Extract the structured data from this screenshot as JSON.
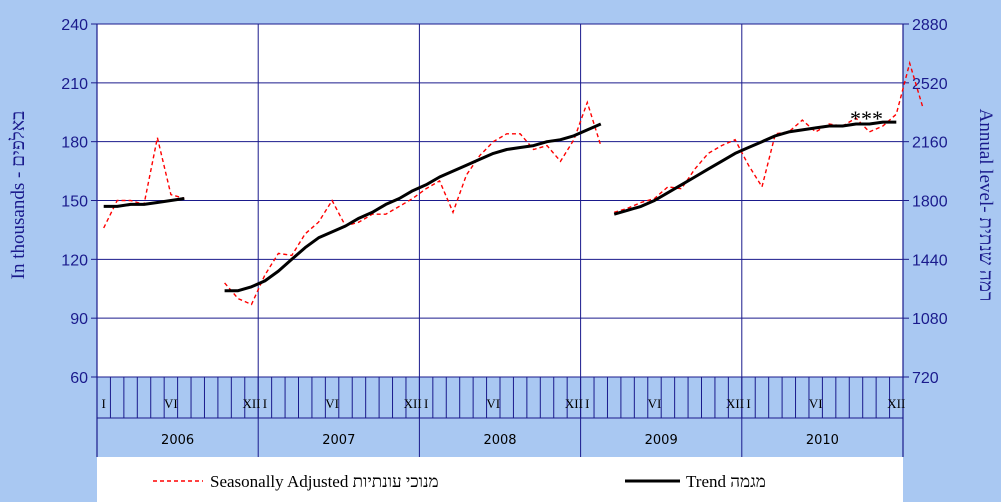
{
  "chart_data": {
    "type": "line",
    "left_axis": {
      "label": "In thousands - באלפים",
      "range": [
        60,
        240
      ],
      "ticks": [
        60,
        90,
        120,
        150,
        180,
        210,
        240
      ]
    },
    "right_axis": {
      "label": "Annual level- רמה שנתית",
      "range": [
        720,
        2880
      ],
      "ticks": [
        720,
        1080,
        1440,
        1800,
        2160,
        2520,
        2880
      ]
    },
    "years": [
      "2006",
      "2007",
      "2008",
      "2009",
      "2010"
    ],
    "month_labels": [
      {
        "month": 1,
        "text": "I"
      },
      {
        "month": 6,
        "text": "VI"
      },
      {
        "month": 12,
        "text": "XII"
      }
    ],
    "annotation": "***",
    "grid": true,
    "legend_position": "bottom",
    "series": [
      {
        "name": "Seasonally Adjusted מנוכי עונתיות",
        "style": "dashed",
        "color": "#ff0000",
        "segments": [
          [
            {
              "t": 1,
              "v": 136
            },
            {
              "t": 2,
              "v": 150
            },
            {
              "t": 3,
              "v": 150
            },
            {
              "t": 4,
              "v": 148
            },
            {
              "t": 5,
              "v": 182
            },
            {
              "t": 6,
              "v": 153
            },
            {
              "t": 7,
              "v": 151
            }
          ],
          [
            {
              "t": 10,
              "v": 108
            },
            {
              "t": 11,
              "v": 100
            },
            {
              "t": 12,
              "v": 97
            },
            {
              "t": 13,
              "v": 112
            },
            {
              "t": 14,
              "v": 123
            },
            {
              "t": 15,
              "v": 122
            },
            {
              "t": 16,
              "v": 133
            },
            {
              "t": 17,
              "v": 139
            },
            {
              "t": 18,
              "v": 150
            },
            {
              "t": 19,
              "v": 137
            },
            {
              "t": 20,
              "v": 139
            },
            {
              "t": 21,
              "v": 143
            },
            {
              "t": 22,
              "v": 143
            },
            {
              "t": 23,
              "v": 147
            },
            {
              "t": 24,
              "v": 151
            },
            {
              "t": 25,
              "v": 156
            },
            {
              "t": 26,
              "v": 160
            },
            {
              "t": 27,
              "v": 144
            },
            {
              "t": 28,
              "v": 163
            },
            {
              "t": 29,
              "v": 173
            },
            {
              "t": 30,
              "v": 180
            },
            {
              "t": 31,
              "v": 184
            },
            {
              "t": 32,
              "v": 184
            },
            {
              "t": 33,
              "v": 176
            },
            {
              "t": 34,
              "v": 178
            },
            {
              "t": 35,
              "v": 170
            },
            {
              "t": 36,
              "v": 181
            },
            {
              "t": 37,
              "v": 200
            },
            {
              "t": 38,
              "v": 178
            }
          ],
          [
            {
              "t": 39,
              "v": 144
            },
            {
              "t": 40,
              "v": 146
            },
            {
              "t": 41,
              "v": 149
            },
            {
              "t": 42,
              "v": 151
            },
            {
              "t": 43,
              "v": 157
            },
            {
              "t": 44,
              "v": 156
            },
            {
              "t": 45,
              "v": 166
            },
            {
              "t": 46,
              "v": 174
            },
            {
              "t": 47,
              "v": 178
            },
            {
              "t": 48,
              "v": 181
            },
            {
              "t": 49,
              "v": 168
            },
            {
              "t": 50,
              "v": 157
            },
            {
              "t": 51,
              "v": 184
            },
            {
              "t": 52,
              "v": 185
            },
            {
              "t": 53,
              "v": 191
            },
            {
              "t": 54,
              "v": 185
            },
            {
              "t": 55,
              "v": 189
            },
            {
              "t": 56,
              "v": 188
            },
            {
              "t": 57,
              "v": 192
            },
            {
              "t": 58,
              "v": 185
            },
            {
              "t": 59,
              "v": 188
            },
            {
              "t": 60,
              "v": 194
            },
            {
              "t": 61,
              "v": 220
            },
            {
              "t": 62,
              "v": 197
            }
          ]
        ]
      },
      {
        "name": "Trend מגמה",
        "style": "solid",
        "color": "#000000",
        "segments": [
          [
            {
              "t": 1,
              "v": 147
            },
            {
              "t": 2,
              "v": 147
            },
            {
              "t": 3,
              "v": 148
            },
            {
              "t": 4,
              "v": 148
            },
            {
              "t": 5,
              "v": 149
            },
            {
              "t": 6,
              "v": 150
            },
            {
              "t": 7,
              "v": 151
            }
          ],
          [
            {
              "t": 10,
              "v": 104
            },
            {
              "t": 11,
              "v": 104
            },
            {
              "t": 12,
              "v": 106
            },
            {
              "t": 13,
              "v": 109
            },
            {
              "t": 14,
              "v": 114
            },
            {
              "t": 15,
              "v": 120
            },
            {
              "t": 16,
              "v": 126
            },
            {
              "t": 17,
              "v": 131
            },
            {
              "t": 18,
              "v": 134
            },
            {
              "t": 19,
              "v": 137
            },
            {
              "t": 20,
              "v": 141
            },
            {
              "t": 21,
              "v": 144
            },
            {
              "t": 22,
              "v": 148
            },
            {
              "t": 23,
              "v": 151
            },
            {
              "t": 24,
              "v": 155
            },
            {
              "t": 25,
              "v": 158
            },
            {
              "t": 26,
              "v": 162
            },
            {
              "t": 27,
              "v": 165
            },
            {
              "t": 28,
              "v": 168
            },
            {
              "t": 29,
              "v": 171
            },
            {
              "t": 30,
              "v": 174
            },
            {
              "t": 31,
              "v": 176
            },
            {
              "t": 32,
              "v": 177
            },
            {
              "t": 33,
              "v": 178
            },
            {
              "t": 34,
              "v": 180
            },
            {
              "t": 35,
              "v": 181
            },
            {
              "t": 36,
              "v": 183
            },
            {
              "t": 37,
              "v": 186
            },
            {
              "t": 38,
              "v": 189
            }
          ],
          [
            {
              "t": 39,
              "v": 143
            },
            {
              "t": 40,
              "v": 145
            },
            {
              "t": 41,
              "v": 147
            },
            {
              "t": 42,
              "v": 150
            },
            {
              "t": 43,
              "v": 154
            },
            {
              "t": 44,
              "v": 158
            },
            {
              "t": 45,
              "v": 162
            },
            {
              "t": 46,
              "v": 166
            },
            {
              "t": 47,
              "v": 170
            },
            {
              "t": 48,
              "v": 174
            },
            {
              "t": 49,
              "v": 177
            },
            {
              "t": 50,
              "v": 180
            },
            {
              "t": 51,
              "v": 183
            },
            {
              "t": 52,
              "v": 185
            },
            {
              "t": 53,
              "v": 186
            },
            {
              "t": 54,
              "v": 187
            },
            {
              "t": 55,
              "v": 188
            },
            {
              "t": 56,
              "v": 188
            },
            {
              "t": 57,
              "v": 189
            },
            {
              "t": 58,
              "v": 189
            },
            {
              "t": 59,
              "v": 190
            },
            {
              "t": 60,
              "v": 190
            }
          ]
        ]
      }
    ]
  }
}
